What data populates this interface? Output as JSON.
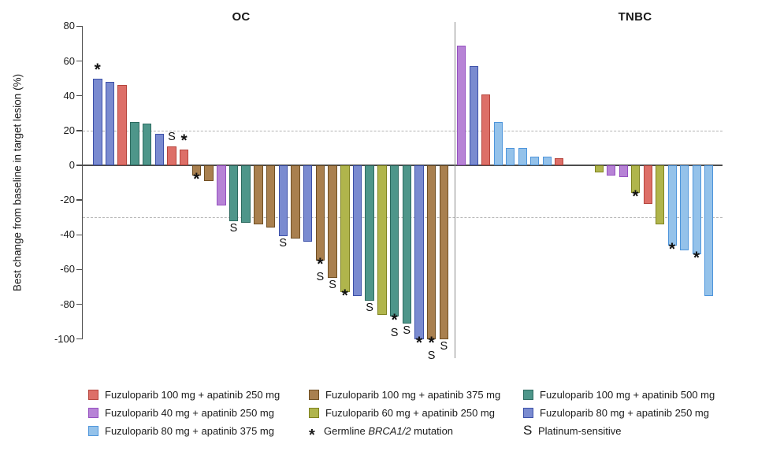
{
  "figure": {
    "background": "#ffffff",
    "axis_color": "#4d4d4d",
    "dashed_line_color": "#b3b3b3"
  },
  "palette": {
    "red": {
      "fill": "#DD6F68",
      "border": "#B5443C"
    },
    "brown": {
      "fill": "#A9804F",
      "border": "#6F4E22"
    },
    "teal": {
      "fill": "#4E968A",
      "border": "#2C6A5F"
    },
    "purple": {
      "fill": "#B783D6",
      "border": "#9550C0"
    },
    "yellow": {
      "fill": "#B0B54C",
      "border": "#7F831F"
    },
    "blue": {
      "fill": "#7A8BD0",
      "border": "#3C50A8"
    },
    "lightblue": {
      "fill": "#94C2EA",
      "border": "#4E95DB"
    }
  },
  "chart_data": {
    "type": "bar",
    "subtype": "waterfall",
    "ylabel": "Best change from baseline in target lesion (%)",
    "ylim": [
      -100,
      80
    ],
    "yticks": [
      80,
      60,
      40,
      20,
      0,
      -20,
      -40,
      -60,
      -80,
      -100
    ],
    "reference_lines": [
      20,
      -30
    ],
    "grid": false,
    "panels": [
      {
        "title": "OC",
        "bars": [
          {
            "value": 50,
            "group": "blue",
            "mark": "*"
          },
          {
            "value": 48,
            "group": "blue"
          },
          {
            "value": 46,
            "group": "red"
          },
          {
            "value": 25,
            "group": "teal"
          },
          {
            "value": 24,
            "group": "teal"
          },
          {
            "value": 18,
            "group": "blue"
          },
          {
            "value": 11,
            "group": "red",
            "mark": "S"
          },
          {
            "value": 9,
            "group": "red",
            "mark": "*"
          },
          {
            "value": -6,
            "group": "brown",
            "mark": "*"
          },
          {
            "value": -9,
            "group": "brown"
          },
          {
            "value": -23,
            "group": "purple"
          },
          {
            "value": -32,
            "group": "teal",
            "mark": "S"
          },
          {
            "value": -33,
            "group": "teal"
          },
          {
            "value": -34,
            "group": "brown"
          },
          {
            "value": -36,
            "group": "brown"
          },
          {
            "value": -41,
            "group": "blue",
            "mark": "S"
          },
          {
            "value": -42,
            "group": "brown"
          },
          {
            "value": -44,
            "group": "blue"
          },
          {
            "value": -55,
            "group": "brown",
            "mark": "*S"
          },
          {
            "value": -65,
            "group": "brown",
            "mark": "S"
          },
          {
            "value": -73,
            "group": "yellow",
            "mark": "*"
          },
          {
            "value": -75,
            "group": "blue"
          },
          {
            "value": -78,
            "group": "teal",
            "mark": "S"
          },
          {
            "value": -86,
            "group": "yellow"
          },
          {
            "value": -87,
            "group": "teal",
            "mark": "*S"
          },
          {
            "value": -91,
            "group": "teal",
            "mark": "S"
          },
          {
            "value": -100,
            "group": "blue",
            "mark": "*"
          },
          {
            "value": -100,
            "group": "brown",
            "mark": "*S"
          },
          {
            "value": -100,
            "group": "brown",
            "mark": "S"
          }
        ]
      },
      {
        "title": "TNBC",
        "gap_after": 9,
        "bars": [
          {
            "value": 69,
            "group": "purple"
          },
          {
            "value": 57,
            "group": "blue"
          },
          {
            "value": 41,
            "group": "red"
          },
          {
            "value": 25,
            "group": "lightblue"
          },
          {
            "value": 10,
            "group": "lightblue"
          },
          {
            "value": 10,
            "group": "lightblue"
          },
          {
            "value": 5,
            "group": "lightblue"
          },
          {
            "value": 5,
            "group": "lightblue"
          },
          {
            "value": 4,
            "group": "red"
          },
          {
            "value": -4,
            "group": "yellow"
          },
          {
            "value": -6,
            "group": "purple"
          },
          {
            "value": -7,
            "group": "purple"
          },
          {
            "value": -16,
            "group": "yellow",
            "mark": "*"
          },
          {
            "value": -22,
            "group": "red"
          },
          {
            "value": -34,
            "group": "yellow"
          },
          {
            "value": -46,
            "group": "lightblue",
            "mark": "*"
          },
          {
            "value": -49,
            "group": "lightblue"
          },
          {
            "value": -51,
            "group": "lightblue",
            "mark": "*"
          },
          {
            "value": -75,
            "group": "lightblue"
          }
        ]
      }
    ]
  },
  "legend": {
    "items": [
      {
        "key": "red",
        "label": "Fuzuloparib 100 mg + apatinib 250 mg"
      },
      {
        "key": "brown",
        "label": "Fuzuloparib 100 mg + apatinib 375 mg"
      },
      {
        "key": "teal",
        "label": "Fuzuloparib 100 mg + apatinib 500 mg"
      },
      {
        "key": "purple",
        "label": "Fuzuloparib 40 mg + apatinib 250 mg"
      },
      {
        "key": "yellow",
        "label": "Fuzuloparib 60 mg + apatinib 250 mg"
      },
      {
        "key": "blue",
        "label": "Fuzuloparib 80 mg + apatinib 250 mg"
      },
      {
        "key": "lightblue",
        "label": "Fuzuloparib 80 mg + apatinib 375 mg"
      }
    ],
    "asterisk": {
      "symbol": "*",
      "prefix": "Germline ",
      "italic": "BRCA1/2",
      "suffix": " mutation"
    },
    "platinum": {
      "symbol": "S",
      "label": "Platinum-sensitive"
    }
  }
}
